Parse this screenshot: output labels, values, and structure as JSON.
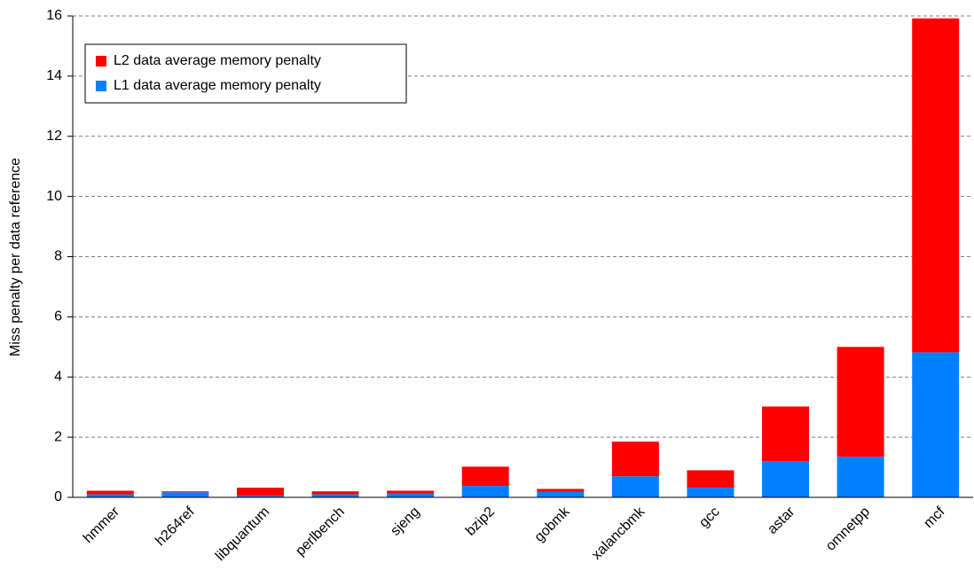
{
  "chart_data": {
    "type": "stacked_bar",
    "y_label": "Miss penalty per data reference",
    "categories": [
      "hmmer",
      "h264ref",
      "libquantum",
      "perlbench",
      "sjeng",
      "bzip2",
      "gobmk",
      "xalancbmk",
      "gcc",
      "astar",
      "omnetpp",
      "mcf"
    ],
    "series": [
      {
        "name": "L1 data average memory penalty",
        "color": "#0080ff",
        "values": [
          0.1,
          0.17,
          0.05,
          0.1,
          0.13,
          0.38,
          0.18,
          0.7,
          0.32,
          1.2,
          1.35,
          4.82
        ]
      },
      {
        "name": "L2 data average memory penalty",
        "color": "#ff0000",
        "values": [
          0.12,
          0.03,
          0.27,
          0.1,
          0.09,
          0.64,
          0.1,
          1.15,
          0.58,
          1.82,
          3.65,
          11.1
        ]
      }
    ],
    "ylim": [
      0,
      16
    ],
    "yticks": [
      0,
      2,
      4,
      6,
      8,
      10,
      12,
      14,
      16
    ],
    "grid": true,
    "legend": "upper left"
  }
}
